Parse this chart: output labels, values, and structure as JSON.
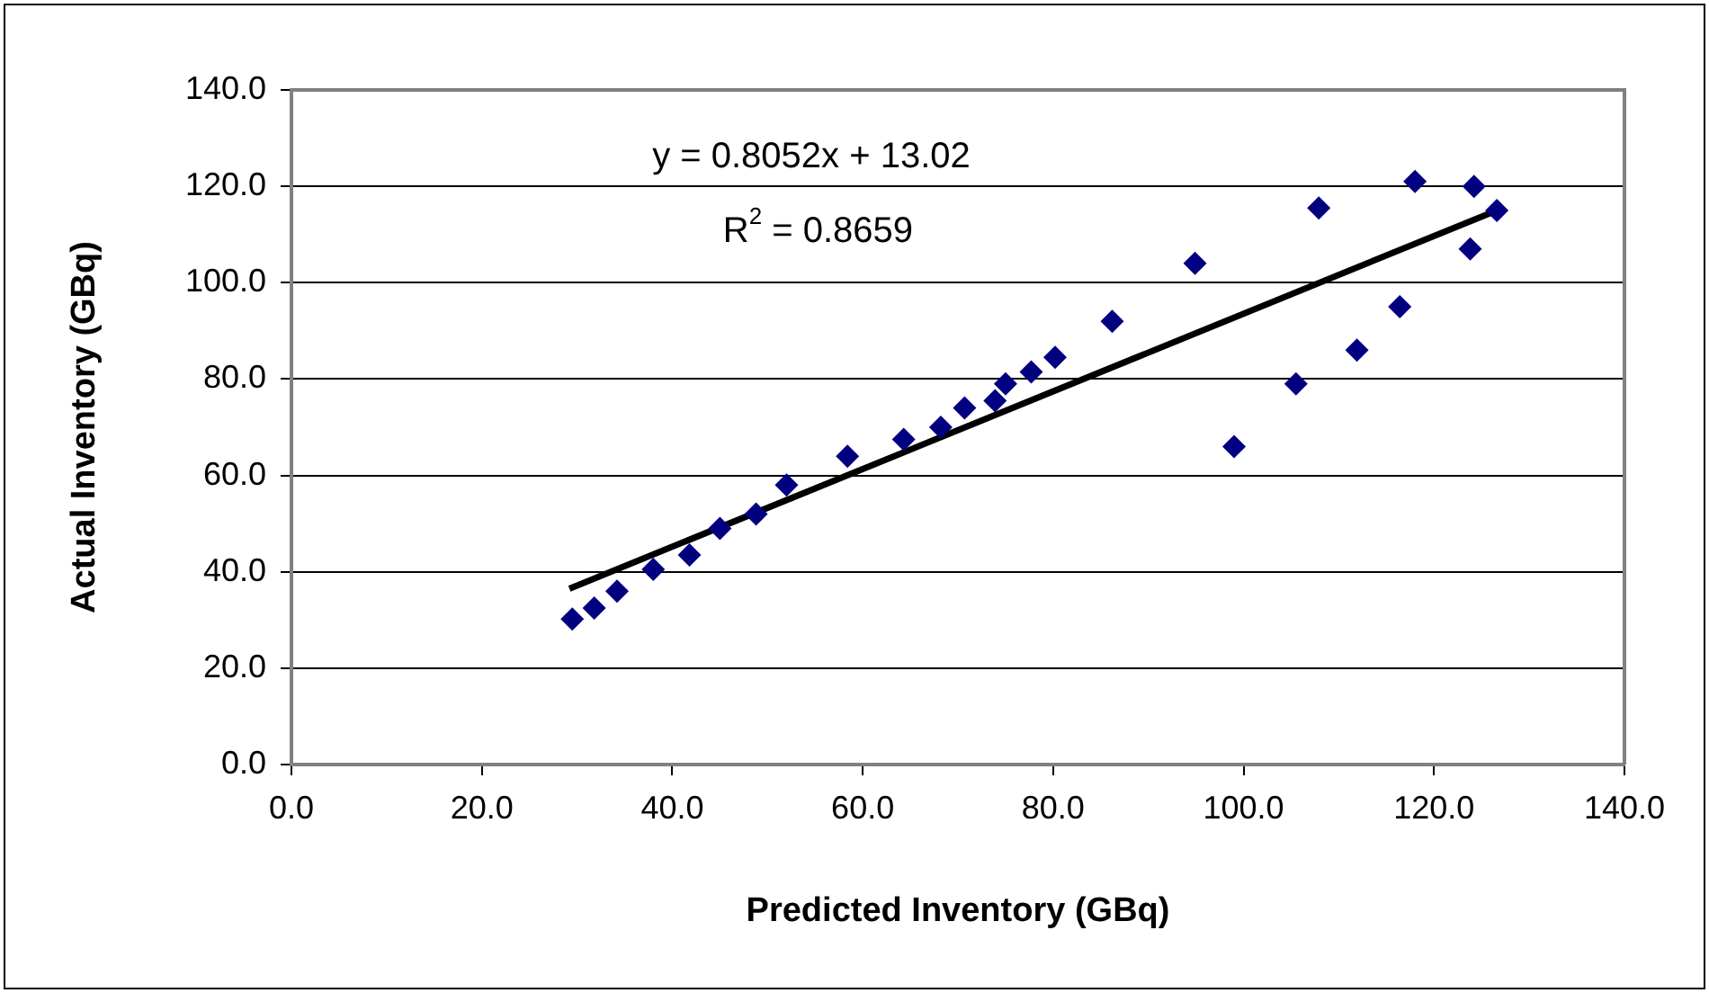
{
  "chart_data": {
    "type": "scatter",
    "xlabel": "Predicted Inventory (GBq)",
    "ylabel": "Actual Inventory (GBq)",
    "annotations": [
      "y = 0.8052x + 13.02",
      "R$^{2}$ = 0.8659"
    ],
    "series": [
      {
        "color": "#000080",
        "marker": "diamond",
        "x": [
          29.5,
          31.8,
          34.2,
          38.0,
          41.8,
          45.0,
          48.8,
          52.0,
          58.4,
          64.3,
          68.2,
          70.7,
          73.9,
          75.0,
          77.7,
          80.2,
          86.2,
          94.9,
          99.0,
          105.5,
          107.9,
          111.9,
          116.4,
          118.0,
          123.8,
          124.2,
          126.6
        ],
        "values": [
          30.2,
          32.5,
          36.0,
          40.5,
          43.5,
          49.0,
          52.0,
          58.0,
          64.0,
          67.5,
          70.0,
          74.0,
          75.5,
          79.0,
          81.5,
          84.5,
          92.0,
          104.0,
          66.0,
          79.0,
          115.5,
          86.0,
          95.0,
          121.0,
          107.0,
          120.0,
          115.0
        ]
      },
      {
        "type": "line",
        "color": "#000000",
        "marker": "none",
        "x": [
          29.2,
          126.6
        ],
        "values": [
          36.5,
          115.0
        ]
      }
    ],
    "xlim": [
      0,
      140
    ],
    "xticks": [
      {
        "value": 0,
        "label": "0.0"
      },
      {
        "value": 20,
        "label": "20.0"
      },
      {
        "value": 40,
        "label": "40.0"
      },
      {
        "value": 60,
        "label": "60.0"
      },
      {
        "value": 80,
        "label": "80.0"
      },
      {
        "value": 100,
        "label": "100.0"
      },
      {
        "value": 120,
        "label": "120.0"
      },
      {
        "value": 140,
        "label": "140.0"
      }
    ],
    "ylim": [
      0,
      140
    ],
    "yticks": [
      {
        "value": 0,
        "label": "0.0"
      },
      {
        "value": 20,
        "label": "20.0"
      },
      {
        "value": 40,
        "label": "40.0"
      },
      {
        "value": 60,
        "label": "60.0"
      },
      {
        "value": 80,
        "label": "80.0"
      },
      {
        "value": 100,
        "label": "100.0"
      },
      {
        "value": 120,
        "label": "120.0"
      },
      {
        "value": 140,
        "label": "140.0"
      }
    ],
    "grid": "y",
    "legend": false
  }
}
